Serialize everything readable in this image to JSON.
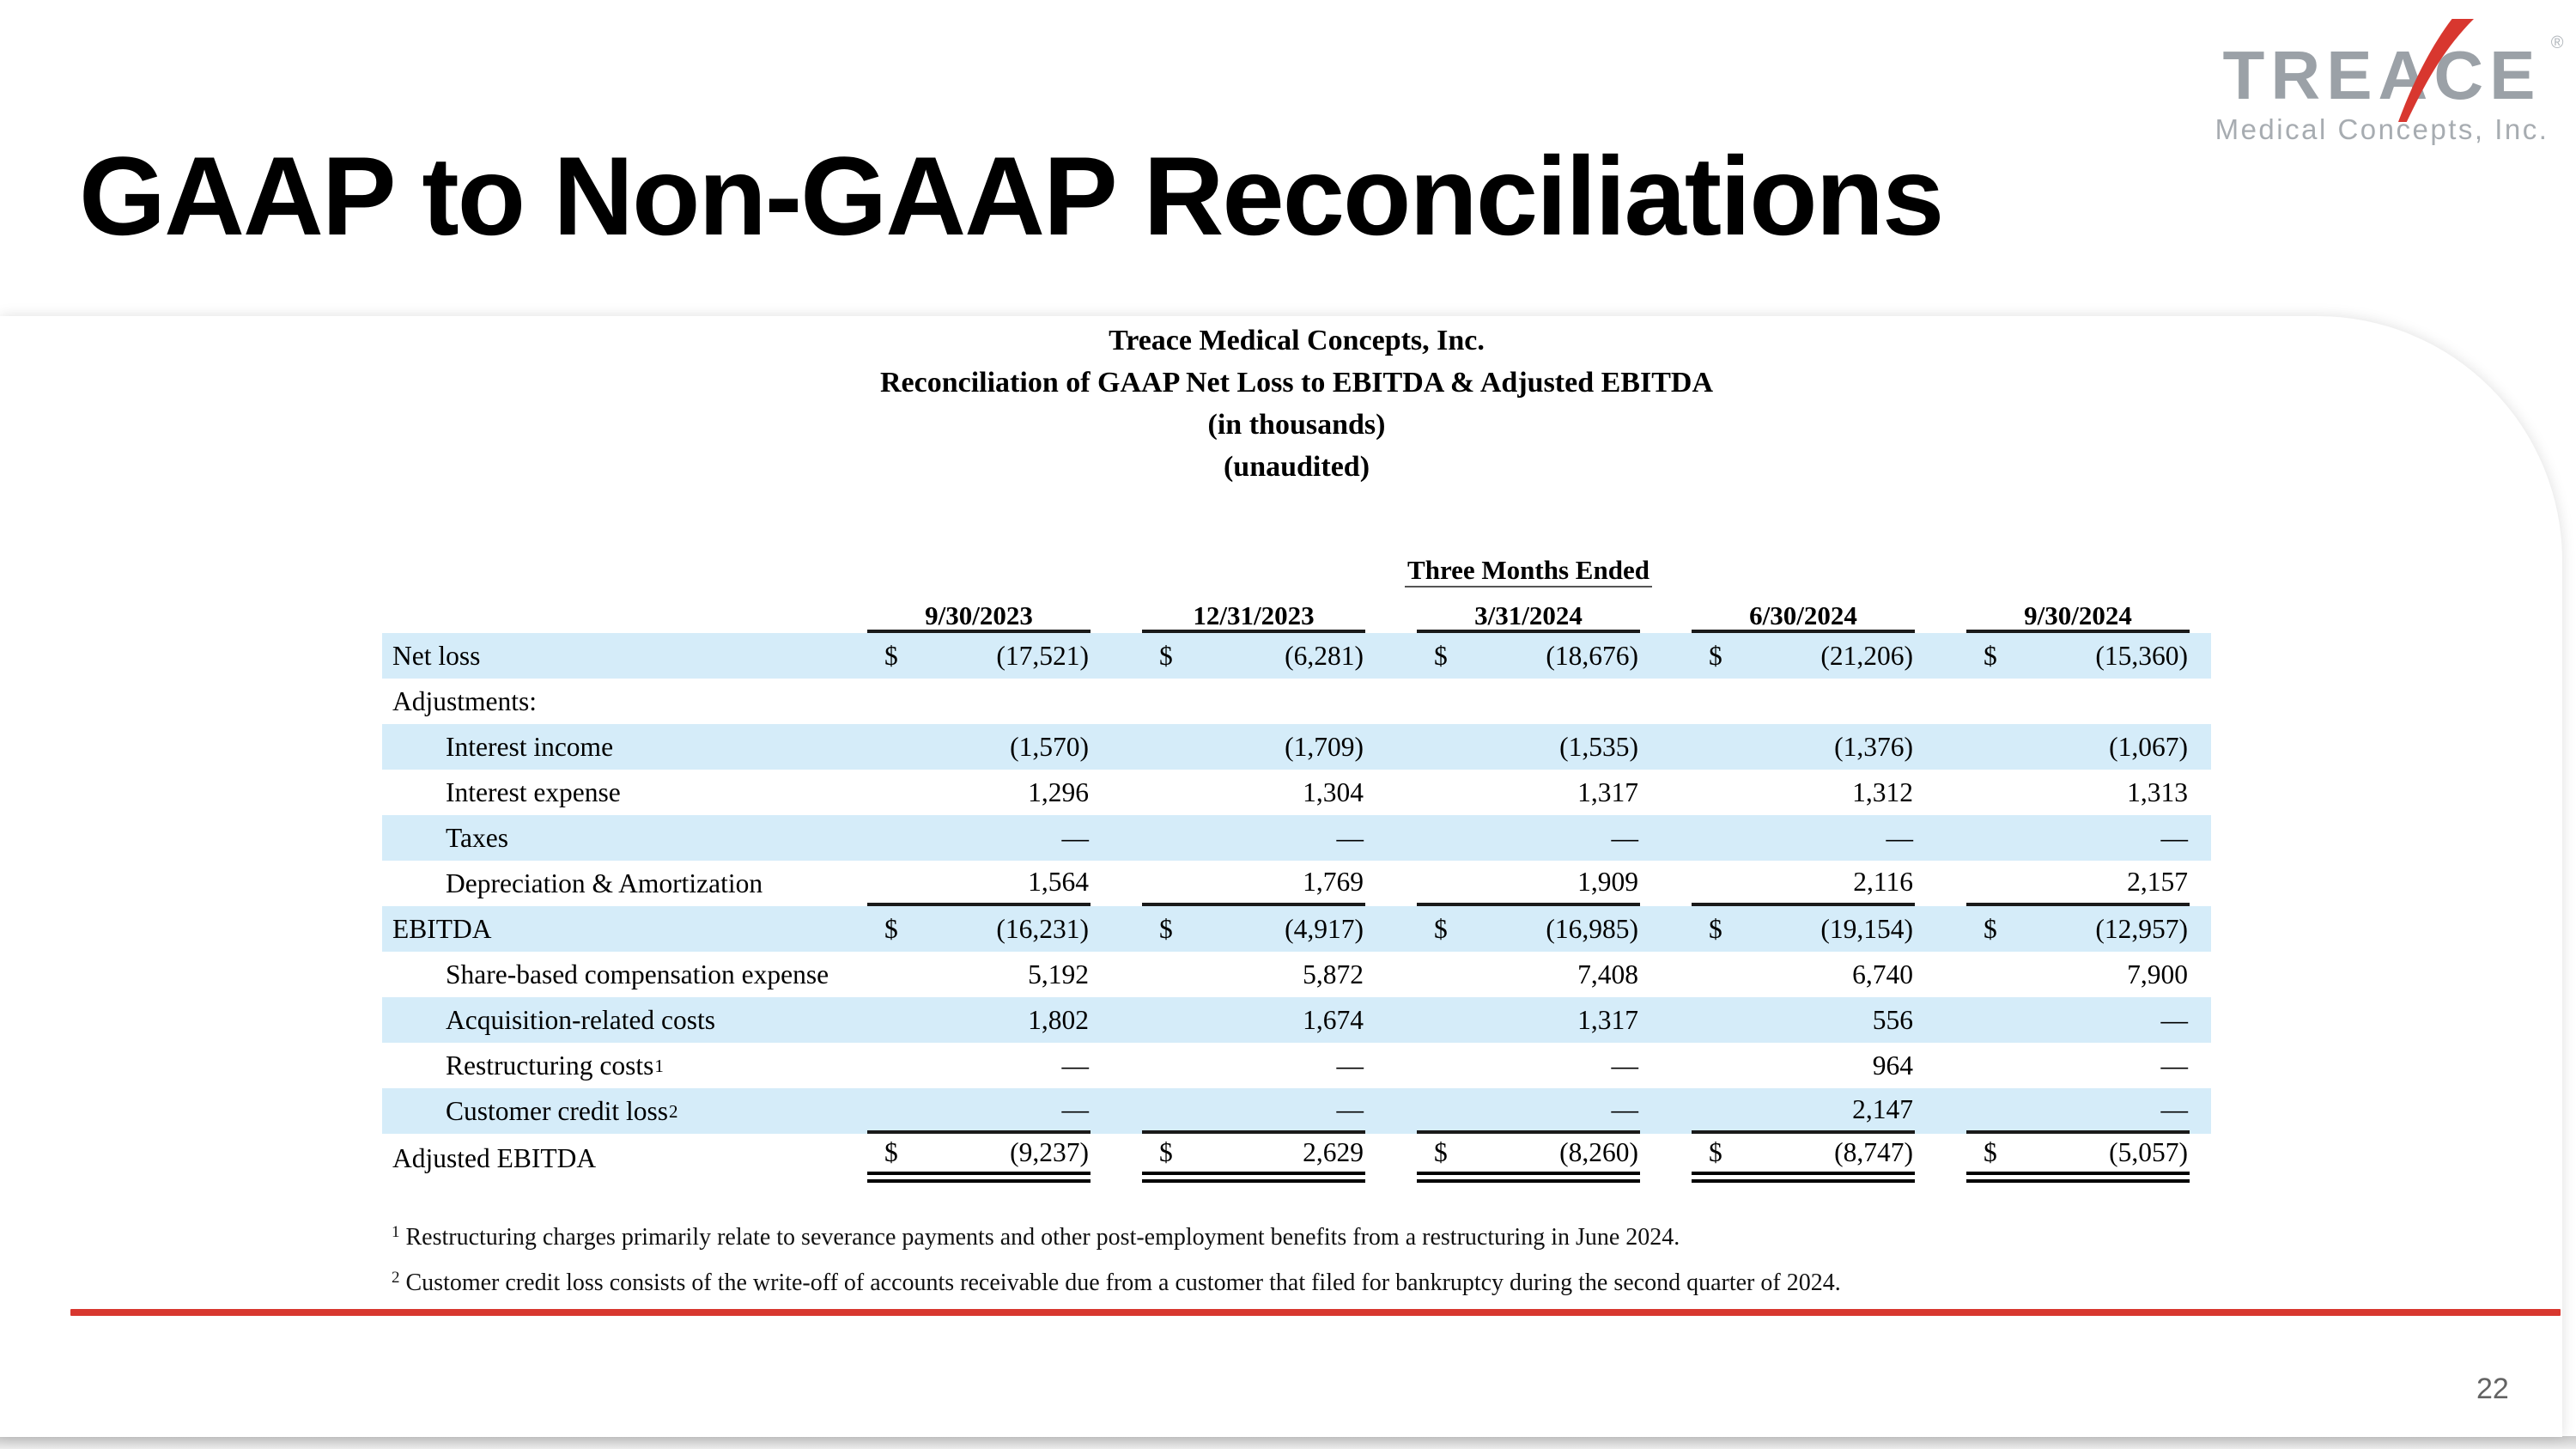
{
  "slide": {
    "title": "GAAP to Non-GAAP Reconciliations",
    "page_number": "22"
  },
  "logo": {
    "brand": "TREACE",
    "registered": "®",
    "subtitle": "Medical Concepts, Inc."
  },
  "table": {
    "heading_lines": [
      "Treace Medical Concepts, Inc.",
      "Reconciliation of GAAP Net Loss to EBITDA & Adjusted EBITDA",
      "(in thousands)",
      "(unaudited)"
    ],
    "period_header": "Three Months Ended",
    "columns": [
      "9/30/2023",
      "12/31/2023",
      "3/31/2024",
      "6/30/2024",
      "9/30/2024"
    ],
    "dollar_sign": "$",
    "rows": [
      {
        "label": "Net loss",
        "indent": 0,
        "dollar": true,
        "shaded": true,
        "values": [
          "(17,521)",
          "(6,281)",
          "(18,676)",
          "(21,206)",
          "(15,360)"
        ]
      },
      {
        "label": "Adjustments:",
        "indent": 0,
        "shaded": false,
        "values": []
      },
      {
        "label": "Interest income",
        "indent": 1,
        "shaded": true,
        "values": [
          "(1,570)",
          "(1,709)",
          "(1,535)",
          "(1,376)",
          "(1,067)"
        ]
      },
      {
        "label": "Interest expense",
        "indent": 1,
        "shaded": false,
        "values": [
          "1,296",
          "1,304",
          "1,317",
          "1,312",
          "1,313"
        ]
      },
      {
        "label": "Taxes",
        "indent": 1,
        "shaded": true,
        "values": [
          "—",
          "—",
          "—",
          "—",
          "—"
        ]
      },
      {
        "label": "Depreciation & Amortization",
        "indent": 1,
        "shaded": false,
        "underline": "single",
        "values": [
          "1,564",
          "1,769",
          "1,909",
          "2,116",
          "2,157"
        ]
      },
      {
        "label": "EBITDA",
        "indent": 0,
        "dollar": true,
        "shaded": true,
        "values": [
          "(16,231)",
          "(4,917)",
          "(16,985)",
          "(19,154)",
          "(12,957)"
        ]
      },
      {
        "label": "Share-based compensation expense",
        "indent": 1,
        "shaded": false,
        "values": [
          "5,192",
          "5,872",
          "7,408",
          "6,740",
          "7,900"
        ]
      },
      {
        "label": "Acquisition-related costs",
        "indent": 1,
        "shaded": true,
        "values": [
          "1,802",
          "1,674",
          "1,317",
          "556",
          "—"
        ]
      },
      {
        "label": "Restructuring costs",
        "sup": "1",
        "indent": 1,
        "shaded": false,
        "values": [
          "—",
          "—",
          "—",
          "964",
          "—"
        ]
      },
      {
        "label": "Customer credit loss",
        "sup": "2",
        "indent": 1,
        "shaded": true,
        "underline": "single",
        "values": [
          "—",
          "—",
          "—",
          "2,147",
          "—"
        ]
      },
      {
        "label": "Adjusted EBITDA",
        "indent": 0,
        "dollar": true,
        "shaded": false,
        "underline": "double",
        "values": [
          "(9,237)",
          "2,629",
          "(8,260)",
          "(8,747)",
          "(5,057)"
        ]
      }
    ],
    "footnotes": [
      {
        "marker": "1",
        "text": "Restructuring charges primarily relate to severance payments and other post-employment benefits from a restructuring in June 2024."
      },
      {
        "marker": "2",
        "text": "Customer credit loss consists of the write-off of accounts receivable due from a customer that filed for bankruptcy during the second quarter of 2024."
      }
    ]
  },
  "colors": {
    "row_shade": "#d5ecf9",
    "accent_red": "#d8372f",
    "logo_gray": "#9ba1a7",
    "page_number_gray": "#636363"
  }
}
